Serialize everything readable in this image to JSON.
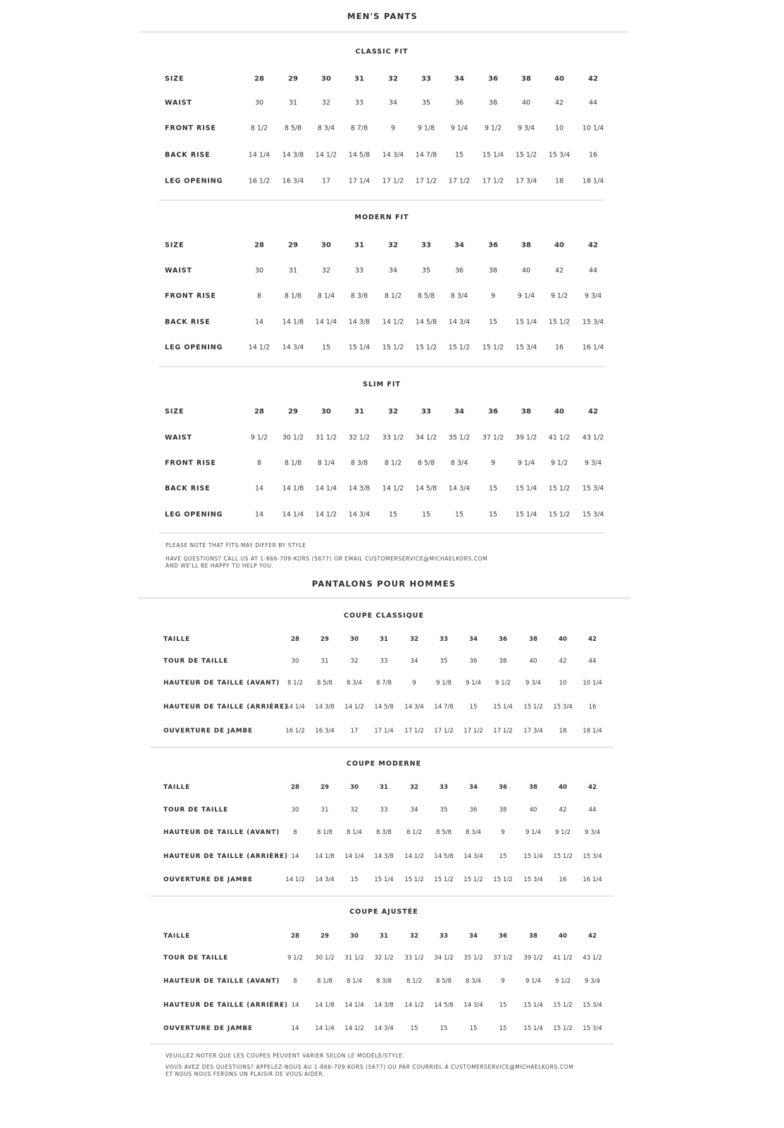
{
  "english": {
    "title": "MEN'S PANTS",
    "tables": [
      {
        "heading": "CLASSIC FIT",
        "rows": [
          {
            "label": "SIZE",
            "values": [
              "28",
              "29",
              "30",
              "31",
              "32",
              "33",
              "34",
              "36",
              "38",
              "40",
              "42"
            ]
          },
          {
            "label": "WAIST",
            "values": [
              "30",
              "31",
              "32",
              "33",
              "34",
              "35",
              "36",
              "38",
              "40",
              "42",
              "44"
            ]
          },
          {
            "label": "FRONT RISE",
            "values": [
              "8 1/2",
              "8 5/8",
              "8 3/4",
              "8 7/8",
              "9",
              "9 1/8",
              "9 1/4",
              "9 1/2",
              "9 3/4",
              "10",
              "10 1/4"
            ]
          },
          {
            "label": "BACK RISE",
            "values": [
              "14 1/4",
              "14 3/8",
              "14 1/2",
              "14 5/8",
              "14 3/4",
              "14 7/8",
              "15",
              "15 1/4",
              "15 1/2",
              "15 3/4",
              "16"
            ]
          },
          {
            "label": "LEG OPENING",
            "values": [
              "16 1/2",
              "16 3/4",
              "17",
              "17 1/4",
              "17 1/2",
              "17 1/2",
              "17 1/2",
              "17 1/2",
              "17 3/4",
              "18",
              "18 1/4"
            ]
          }
        ]
      },
      {
        "heading": "MODERN FIT",
        "rows": [
          {
            "label": "SIZE",
            "values": [
              "28",
              "29",
              "30",
              "31",
              "32",
              "33",
              "34",
              "36",
              "38",
              "40",
              "42"
            ]
          },
          {
            "label": "WAIST",
            "values": [
              "30",
              "31",
              "32",
              "33",
              "34",
              "35",
              "36",
              "38",
              "40",
              "42",
              "44"
            ]
          },
          {
            "label": "FRONT RISE",
            "values": [
              "8",
              "8 1/8",
              "8 1/4",
              "8 3/8",
              "8 1/2",
              "8 5/8",
              "8 3/4",
              "9",
              "9 1/4",
              "9 1/2",
              "9 3/4"
            ]
          },
          {
            "label": "BACK RISE",
            "values": [
              "14",
              "14 1/8",
              "14 1/4",
              "14 3/8",
              "14 1/2",
              "14 5/8",
              "14 3/4",
              "15",
              "15 1/4",
              "15 1/2",
              "15 3/4"
            ]
          },
          {
            "label": "LEG OPENING",
            "values": [
              "14 1/2",
              "14 3/4",
              "15",
              "15 1/4",
              "15 1/2",
              "15 1/2",
              "15 1/2",
              "15 1/2",
              "15 3/4",
              "16",
              "16 1/4"
            ]
          }
        ]
      },
      {
        "heading": "SLIM FIT",
        "rows": [
          {
            "label": "SIZE",
            "values": [
              "28",
              "29",
              "30",
              "31",
              "32",
              "33",
              "34",
              "36",
              "38",
              "40",
              "42"
            ]
          },
          {
            "label": "WAIST",
            "values": [
              "9 1/2",
              "30 1/2",
              "31 1/2",
              "32 1/2",
              "33 1/2",
              "34 1/2",
              "35 1/2",
              "37 1/2",
              "39 1/2",
              "41 1/2",
              "43 1/2"
            ]
          },
          {
            "label": "FRONT RISE",
            "values": [
              "8",
              "8 1/8",
              "8 1/4",
              "8 3/8",
              "8 1/2",
              "8 5/8",
              "8 3/4",
              "9",
              "9 1/4",
              "9 1/2",
              "9 3/4"
            ]
          },
          {
            "label": "BACK RISE",
            "values": [
              "14",
              "14 1/8",
              "14 1/4",
              "14 3/8",
              "14 1/2",
              "14 5/8",
              "14 3/4",
              "15",
              "15 1/4",
              "15 1/2",
              "15 3/4"
            ]
          },
          {
            "label": "LEG OPENING",
            "values": [
              "14",
              "14 1/4",
              "14 1/2",
              "14 3/4",
              "15",
              "15",
              "15",
              "15",
              "15 1/4",
              "15 1/2",
              "15 3/4"
            ]
          }
        ]
      }
    ],
    "note": "PLEASE NOTE THAT FITS MAY DIFFER BY STYLE",
    "contact_line1": "HAVE QUESTIONS? CALL US AT 1-866-709-KORS (5677) OR EMAIL CUSTOMERSERVICE@MICHAELKORS.COM",
    "contact_line2": "AND WE'LL BE HAPPY TO HELP YOU."
  },
  "french": {
    "title": "PANTALONS POUR HOMMES",
    "tables": [
      {
        "heading": "COUPE CLASSIQUE",
        "rows": [
          {
            "label": "TAILLE",
            "values": [
              "28",
              "29",
              "30",
              "31",
              "32",
              "33",
              "34",
              "36",
              "38",
              "40",
              "42"
            ]
          },
          {
            "label": "TOUR DE TAILLE",
            "values": [
              "30",
              "31",
              "32",
              "33",
              "34",
              "35",
              "36",
              "38",
              "40",
              "42",
              "44"
            ]
          },
          {
            "label": "HAUTEUR DE TAILLE (AVANT)",
            "values": [
              "8 1/2",
              "8 5/8",
              "8 3/4",
              "8 7/8",
              "9",
              "9 1/8",
              "9 1/4",
              "9 1/2",
              "9 3/4",
              "10",
              "10 1/4"
            ]
          },
          {
            "label": "HAUTEUR DE TAILLE (ARRIÈRE)",
            "values": [
              "14 1/4",
              "14 3/8",
              "14 1/2",
              "14 5/8",
              "14 3/4",
              "14 7/8",
              "15",
              "15 1/4",
              "15 1/2",
              "15 3/4",
              "16"
            ]
          },
          {
            "label": "OUVERTURE DE JAMBE",
            "values": [
              "16 1/2",
              "16 3/4",
              "17",
              "17 1/4",
              "17 1/2",
              "17 1/2",
              "17 1/2",
              "17 1/2",
              "17 3/4",
              "18",
              "18 1/4"
            ]
          }
        ]
      },
      {
        "heading": "COUPE MODERNE",
        "rows": [
          {
            "label": "TAILLE",
            "values": [
              "28",
              "29",
              "30",
              "31",
              "32",
              "33",
              "34",
              "36",
              "38",
              "40",
              "42"
            ]
          },
          {
            "label": "TOUR DE TAILLE",
            "values": [
              "30",
              "31",
              "32",
              "33",
              "34",
              "35",
              "36",
              "38",
              "40",
              "42",
              "44"
            ]
          },
          {
            "label": "HAUTEUR DE TAILLE (AVANT)",
            "values": [
              "8",
              "8 1/8",
              "8 1/4",
              "8 3/8",
              "8 1/2",
              "8 5/8",
              "8 3/4",
              "9",
              "9 1/4",
              "9 1/2",
              "9 3/4"
            ]
          },
          {
            "label": "HAUTEUR DE TAILLE (ARRIÈRE)",
            "values": [
              "14",
              "14 1/8",
              "14 1/4",
              "14 3/8",
              "14 1/2",
              "14 5/8",
              "14 3/4",
              "15",
              "15 1/4",
              "15 1/2",
              "15 3/4"
            ]
          },
          {
            "label": "OUVERTURE DE JAMBE",
            "values": [
              "14 1/2",
              "14 3/4",
              "15",
              "15 1/4",
              "15 1/2",
              "15 1/2",
              "15 1/2",
              "15 1/2",
              "15 3/4",
              "16",
              "16 1/4"
            ]
          }
        ]
      },
      {
        "heading": "COUPE AJUSTÉE",
        "rows": [
          {
            "label": "TAILLE",
            "values": [
              "28",
              "29",
              "30",
              "31",
              "32",
              "33",
              "34",
              "36",
              "38",
              "40",
              "42"
            ]
          },
          {
            "label": "TOUR DE TAILLE",
            "values": [
              "9 1/2",
              "30 1/2",
              "31 1/2",
              "32 1/2",
              "33 1/2",
              "34 1/2",
              "35 1/2",
              "37 1/2",
              "39 1/2",
              "41 1/2",
              "43 1/2"
            ]
          },
          {
            "label": "HAUTEUR DE TAILLE (AVANT)",
            "values": [
              "8",
              "8 1/8",
              "8 1/4",
              "8 3/8",
              "8 1/2",
              "8 5/8",
              "8 3/4",
              "9",
              "9 1/4",
              "9 1/2",
              "9 3/4"
            ]
          },
          {
            "label": "HAUTEUR DE TAILLE (ARRIÈRE)",
            "values": [
              "14",
              "14 1/8",
              "14 1/4",
              "14 3/8",
              "14 1/2",
              "14 5/8",
              "14 3/4",
              "15",
              "15 1/4",
              "15 1/2",
              "15 3/4"
            ]
          },
          {
            "label": "OUVERTURE DE JAMBE",
            "values": [
              "14",
              "14 1/4",
              "14 1/2",
              "14 3/4",
              "15",
              "15",
              "15",
              "15",
              "15 1/4",
              "15 1/2",
              "15 3/4"
            ]
          }
        ]
      }
    ],
    "note": "VEUILLEZ NOTER QUE LES COUPES PEUVENT VARIER SELON LE MODÈLE/STYLE.",
    "contact_line1": "VOUS AVEZ DES QUESTIONS? APPELEZ-NOUS AU 1-866-709-KORS (5677) OU PAR COURRIEL À CUSTOMERSERVICE@MICHAELKORS.COM",
    "contact_line2": "ET NOUS NOUS FERONS UN PLAISIR DE VOUS AIDER."
  }
}
